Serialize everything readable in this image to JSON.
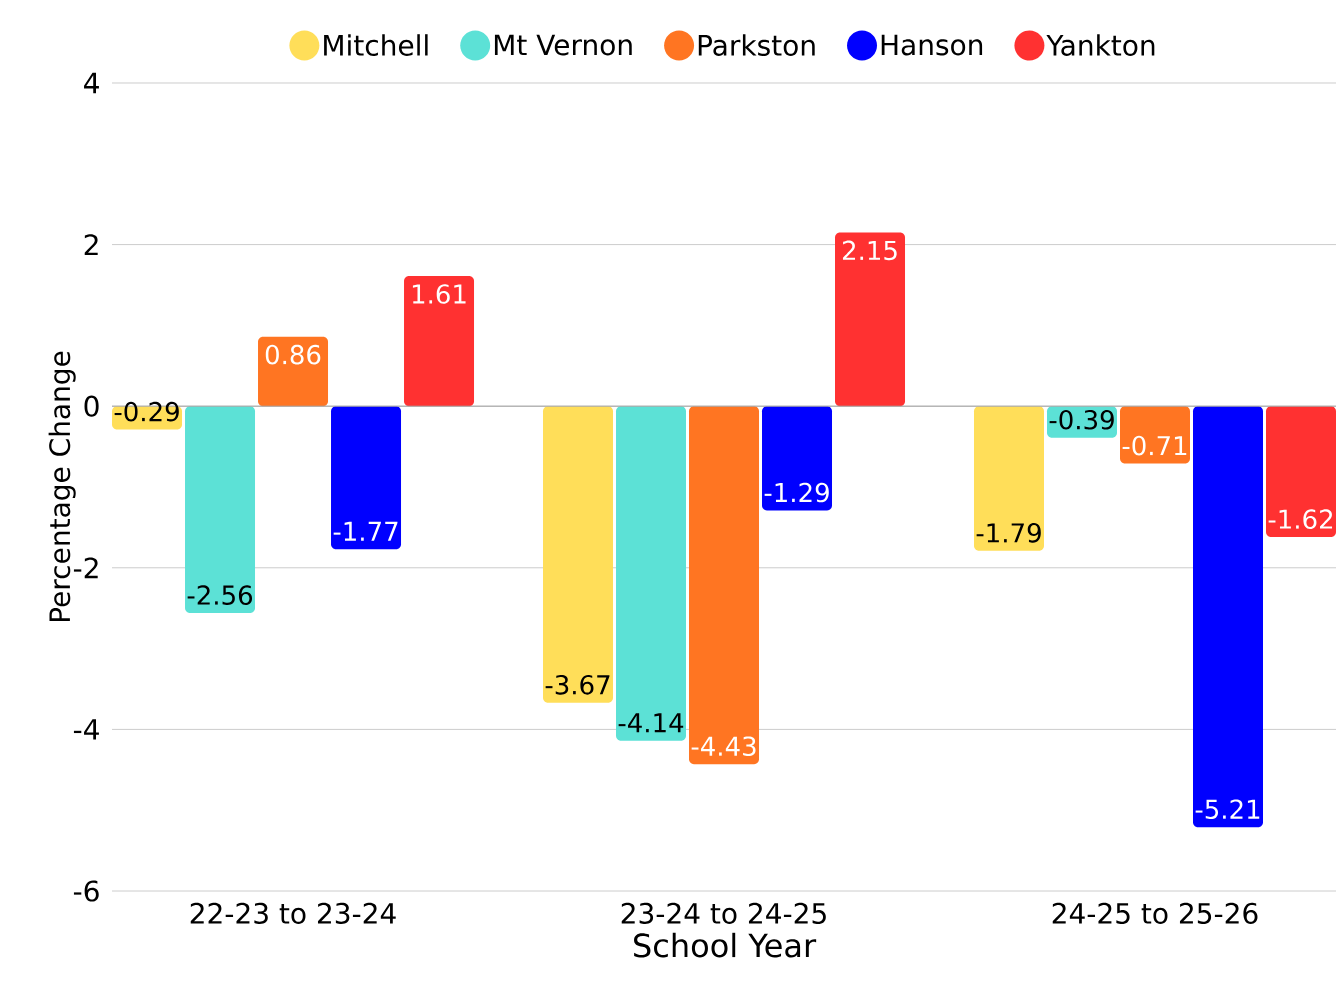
{
  "chart_data": {
    "type": "bar",
    "xlabel": "School Year",
    "ylabel": "Percentage Change",
    "categories": [
      "22-23 to 23-24",
      "23-24 to 24-25",
      "24-25 to 25-26"
    ],
    "series": [
      {
        "name": "Mitchell",
        "color": "#ffde59",
        "values": [
          -0.29,
          -3.67,
          -1.79
        ]
      },
      {
        "name": "Mt Vernon",
        "color": "#5ce1d6",
        "values": [
          -2.56,
          -4.14,
          -0.39
        ]
      },
      {
        "name": "Parkston",
        "color": "#ff7522",
        "values": [
          0.86,
          -4.43,
          -0.71
        ]
      },
      {
        "name": "Hanson",
        "color": "#0000ff",
        "values": [
          -1.77,
          -1.29,
          -5.21
        ]
      },
      {
        "name": "Yankton",
        "color": "#ff3131",
        "values": [
          1.61,
          2.15,
          -1.62
        ]
      }
    ],
    "ylim": [
      -6,
      4
    ],
    "yticks": [
      -6,
      -4,
      -2,
      0,
      2,
      4
    ],
    "grid": "y",
    "legend": "top",
    "data_labels": true
  }
}
